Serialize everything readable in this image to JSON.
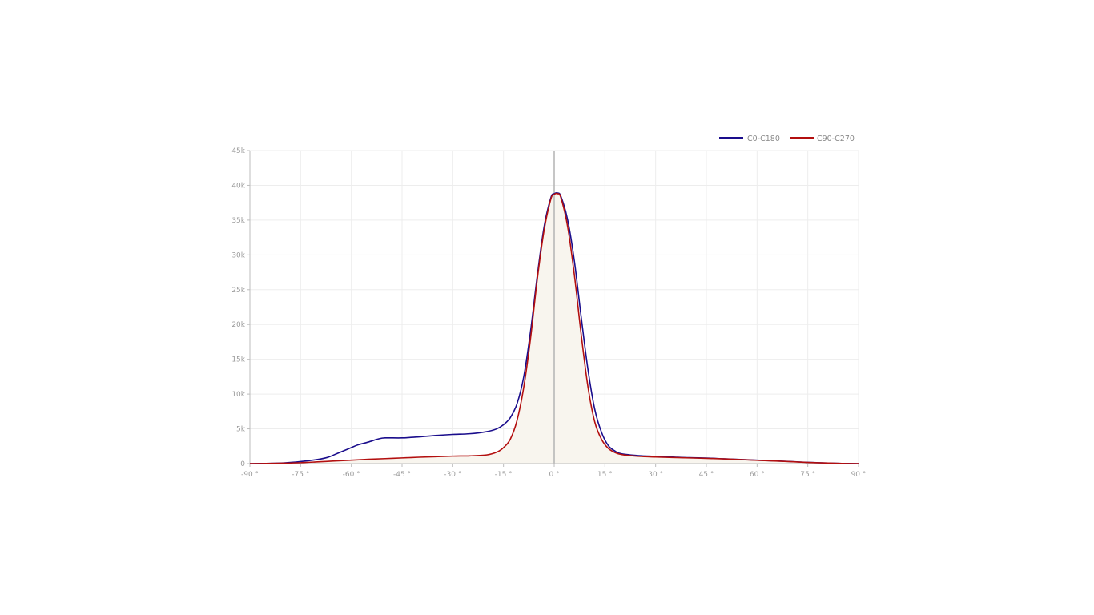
{
  "chart_data": {
    "type": "line",
    "title": "",
    "xlabel": "",
    "ylabel": "",
    "xlim": [
      -90,
      90
    ],
    "ylim": [
      0,
      45000
    ],
    "grid": true,
    "legend_position": "top-right",
    "x_ticks": [
      {
        "value": -90,
        "label": "-90 °"
      },
      {
        "value": -75,
        "label": "-75 °"
      },
      {
        "value": -60,
        "label": "-60 °"
      },
      {
        "value": -45,
        "label": "-45 °"
      },
      {
        "value": -30,
        "label": "-30 °"
      },
      {
        "value": -15,
        "label": "-15 °"
      },
      {
        "value": 0,
        "label": "0 °"
      },
      {
        "value": 15,
        "label": "15 °"
      },
      {
        "value": 30,
        "label": "30 °"
      },
      {
        "value": 45,
        "label": "45 °"
      },
      {
        "value": 60,
        "label": "60 °"
      },
      {
        "value": 75,
        "label": "75 °"
      },
      {
        "value": 90,
        "label": "90 °"
      }
    ],
    "y_ticks": [
      {
        "value": 0,
        "label": "0"
      },
      {
        "value": 5000,
        "label": "5k"
      },
      {
        "value": 10000,
        "label": "10k"
      },
      {
        "value": 15000,
        "label": "15k"
      },
      {
        "value": 20000,
        "label": "20k"
      },
      {
        "value": 25000,
        "label": "25k"
      },
      {
        "value": 30000,
        "label": "30k"
      },
      {
        "value": 35000,
        "label": "35k"
      },
      {
        "value": 40000,
        "label": "40k"
      },
      {
        "value": 45000,
        "label": "45k"
      }
    ],
    "fill_color": "#f8f5ee",
    "series": [
      {
        "name": "C0-C180",
        "color": "#1a0d8c",
        "points": [
          [
            -90,
            0
          ],
          [
            -85,
            30
          ],
          [
            -80,
            100
          ],
          [
            -75,
            300
          ],
          [
            -70,
            600
          ],
          [
            -67,
            900
          ],
          [
            -64,
            1500
          ],
          [
            -61,
            2100
          ],
          [
            -58,
            2700
          ],
          [
            -55,
            3100
          ],
          [
            -52,
            3550
          ],
          [
            -50,
            3700
          ],
          [
            -45,
            3700
          ],
          [
            -40,
            3850
          ],
          [
            -35,
            4050
          ],
          [
            -30,
            4200
          ],
          [
            -25,
            4300
          ],
          [
            -20,
            4600
          ],
          [
            -17,
            5000
          ],
          [
            -15,
            5600
          ],
          [
            -13,
            6600
          ],
          [
            -11,
            8600
          ],
          [
            -9,
            12500
          ],
          [
            -7,
            19000
          ],
          [
            -5,
            27000
          ],
          [
            -3,
            34000
          ],
          [
            -1,
            38200
          ],
          [
            0,
            38800
          ],
          [
            1,
            38900
          ],
          [
            2,
            38400
          ],
          [
            4,
            35000
          ],
          [
            6,
            29000
          ],
          [
            8,
            21000
          ],
          [
            10,
            13500
          ],
          [
            12,
            7800
          ],
          [
            14,
            4500
          ],
          [
            16,
            2600
          ],
          [
            18,
            1800
          ],
          [
            20,
            1400
          ],
          [
            25,
            1150
          ],
          [
            30,
            1050
          ],
          [
            35,
            950
          ],
          [
            40,
            850
          ],
          [
            45,
            800
          ],
          [
            50,
            700
          ],
          [
            55,
            600
          ],
          [
            60,
            500
          ],
          [
            65,
            400
          ],
          [
            70,
            300
          ],
          [
            75,
            180
          ],
          [
            80,
            100
          ],
          [
            85,
            30
          ],
          [
            90,
            0
          ]
        ]
      },
      {
        "name": "C90-C270",
        "color": "#b30f0f",
        "points": [
          [
            -90,
            0
          ],
          [
            -85,
            20
          ],
          [
            -80,
            60
          ],
          [
            -75,
            130
          ],
          [
            -70,
            250
          ],
          [
            -65,
            380
          ],
          [
            -60,
            500
          ],
          [
            -55,
            620
          ],
          [
            -50,
            720
          ],
          [
            -45,
            820
          ],
          [
            -40,
            920
          ],
          [
            -35,
            1000
          ],
          [
            -30,
            1080
          ],
          [
            -25,
            1120
          ],
          [
            -20,
            1250
          ],
          [
            -17,
            1650
          ],
          [
            -15,
            2300
          ],
          [
            -13,
            3500
          ],
          [
            -11,
            6200
          ],
          [
            -9,
            11000
          ],
          [
            -7,
            18000
          ],
          [
            -5,
            26500
          ],
          [
            -3,
            33500
          ],
          [
            -1,
            38000
          ],
          [
            0,
            38700
          ],
          [
            1,
            38800
          ],
          [
            2,
            38200
          ],
          [
            4,
            34000
          ],
          [
            6,
            27000
          ],
          [
            8,
            18500
          ],
          [
            10,
            11000
          ],
          [
            12,
            6000
          ],
          [
            14,
            3500
          ],
          [
            16,
            2200
          ],
          [
            18,
            1600
          ],
          [
            20,
            1300
          ],
          [
            25,
            1050
          ],
          [
            30,
            950
          ],
          [
            35,
            880
          ],
          [
            40,
            820
          ],
          [
            45,
            760
          ],
          [
            50,
            680
          ],
          [
            55,
            580
          ],
          [
            60,
            480
          ],
          [
            65,
            380
          ],
          [
            70,
            280
          ],
          [
            75,
            170
          ],
          [
            80,
            90
          ],
          [
            85,
            25
          ],
          [
            90,
            0
          ]
        ]
      }
    ]
  }
}
